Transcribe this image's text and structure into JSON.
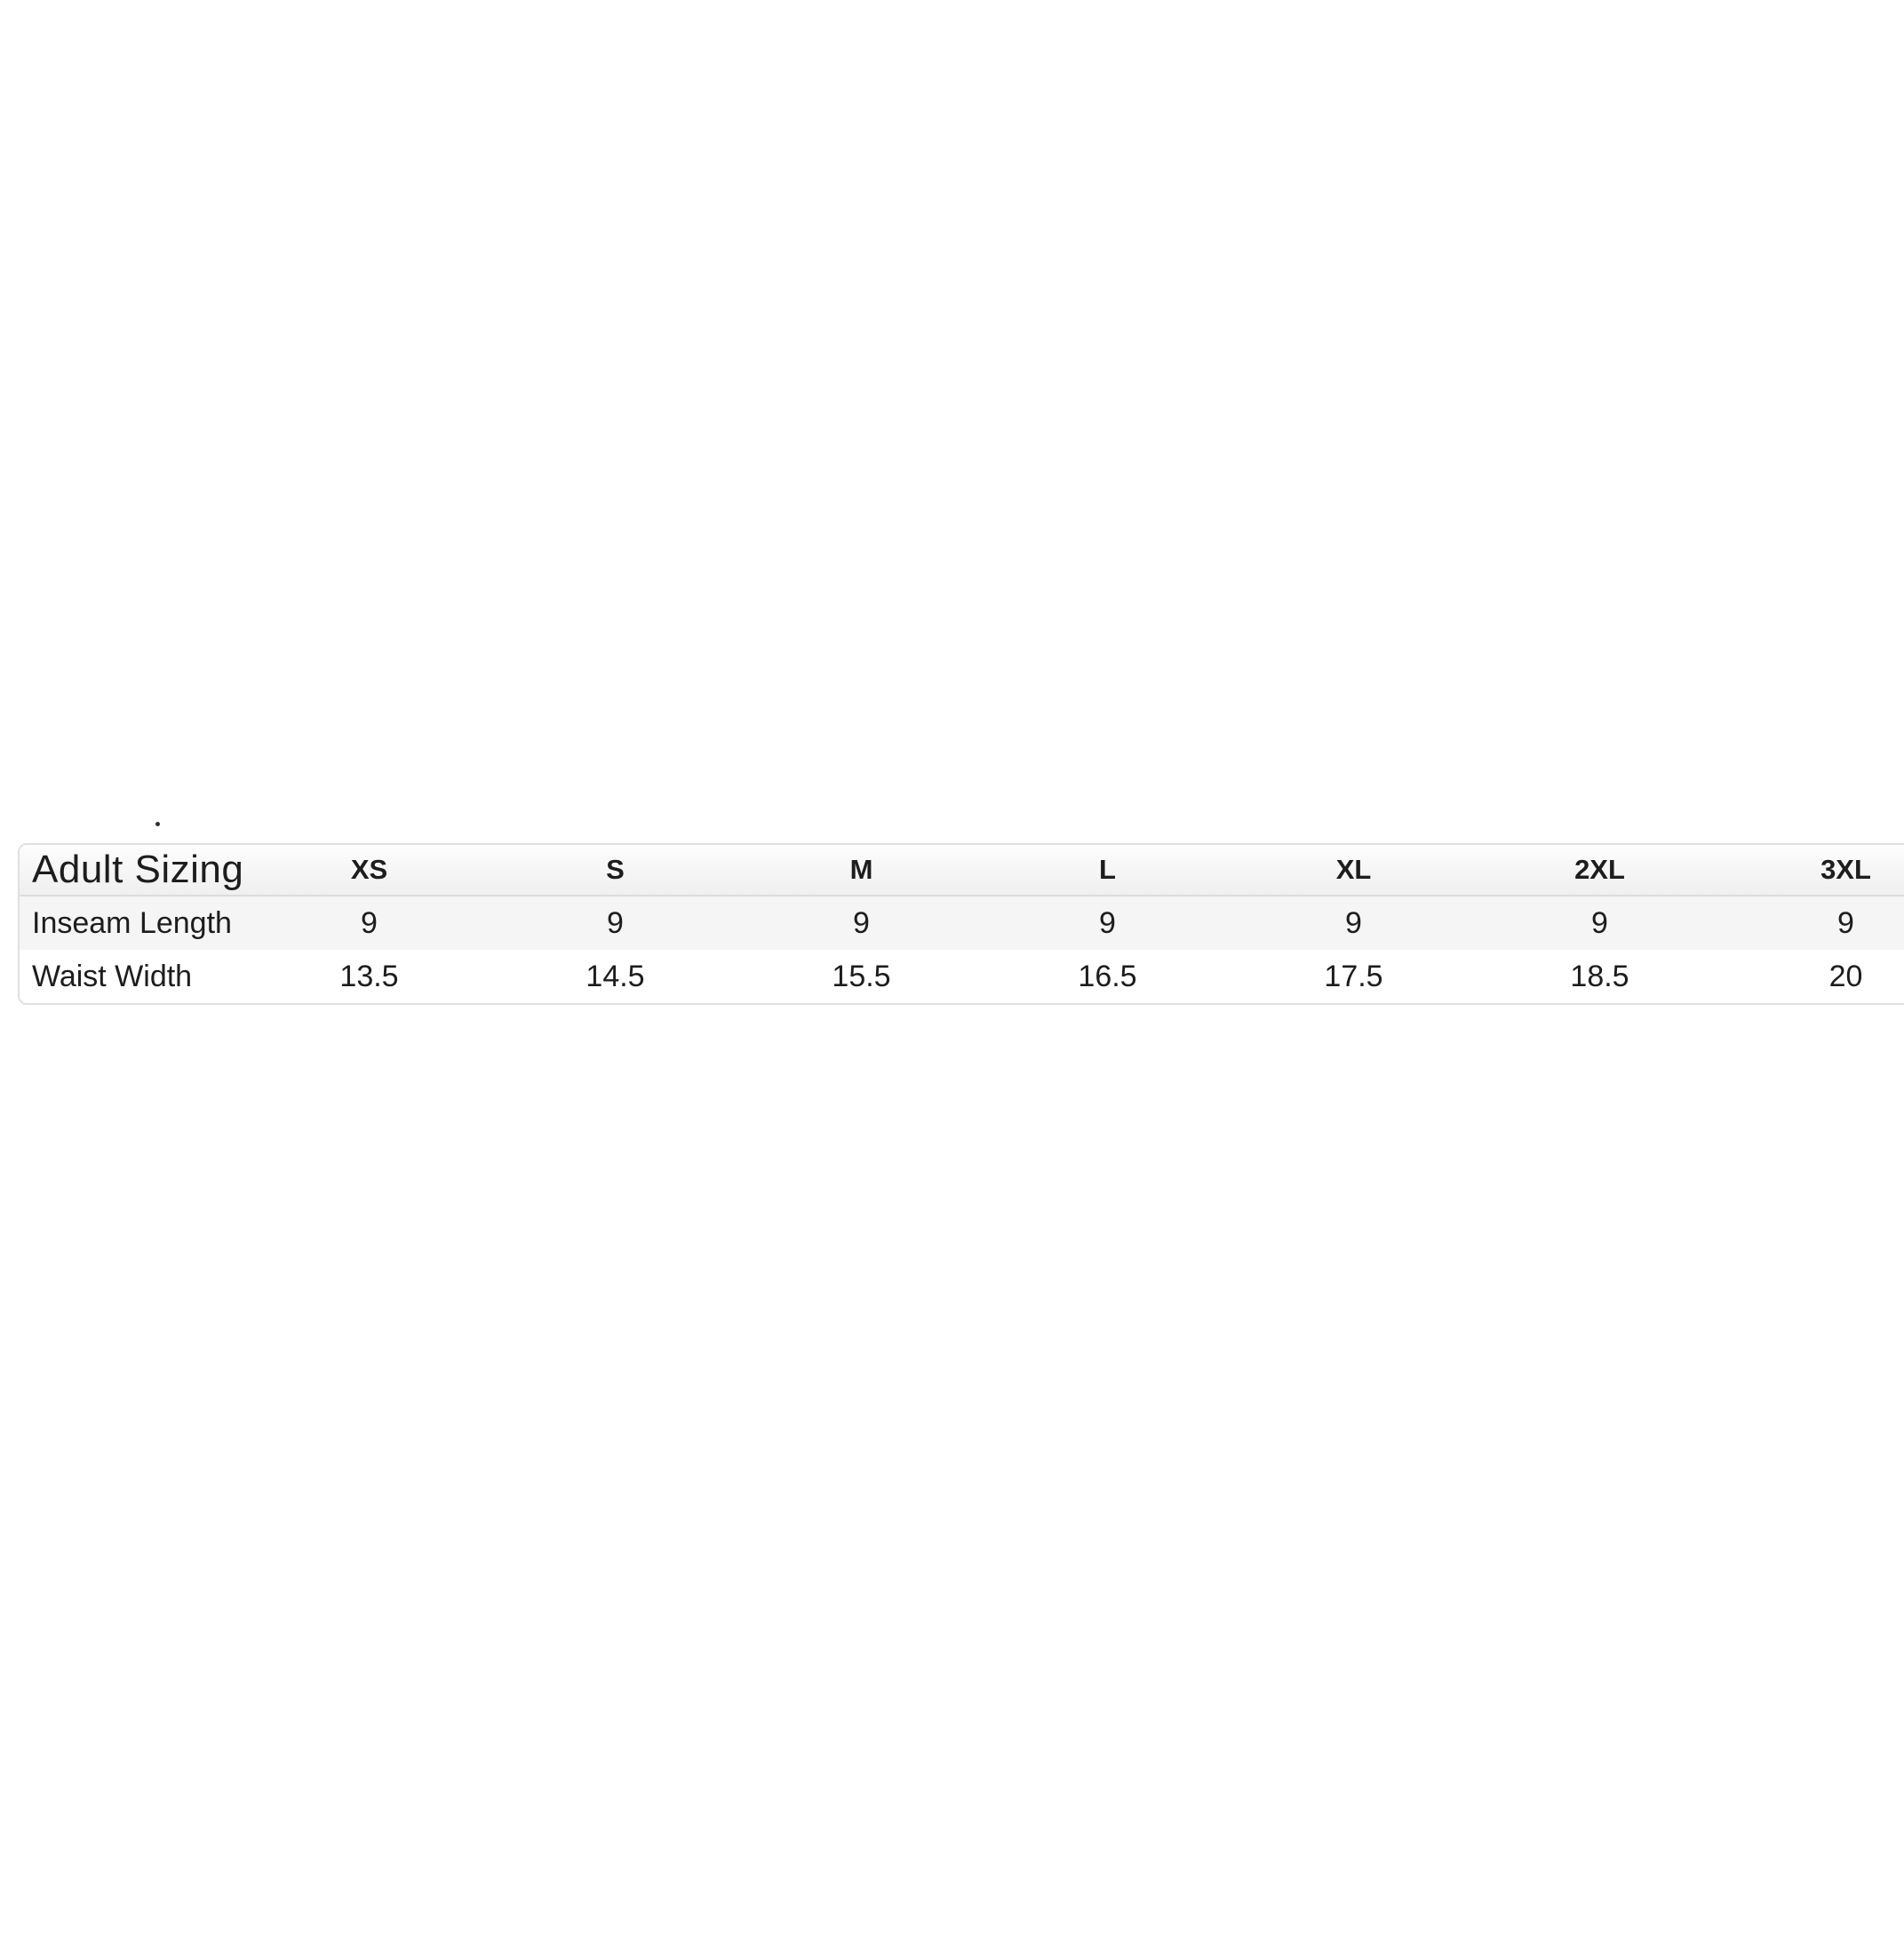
{
  "page": {
    "background": "#ffffff",
    "stray_dot_glyph": "."
  },
  "sizing_table": {
    "title": "Adult Sizing",
    "columns": [
      "XS",
      "S",
      "M",
      "L",
      "XL",
      "2XL",
      "3XL"
    ],
    "rows": [
      {
        "label": "Inseam Length",
        "values": [
          "9",
          "9",
          "9",
          "9",
          "9",
          "9",
          "9"
        ]
      },
      {
        "label": "Waist Width",
        "values": [
          "13.5",
          "14.5",
          "15.5",
          "16.5",
          "17.5",
          "18.5",
          "20"
        ]
      }
    ],
    "colors": {
      "header_gradient_top": "#fdfdfd",
      "header_gradient_bottom": "#efefef",
      "border": "#e0e0e0",
      "header_divider": "#dcdcdc",
      "row_alt_bg": "#f5f5f5",
      "text": "#1d1d1d",
      "page_bg": "#ffffff"
    }
  }
}
